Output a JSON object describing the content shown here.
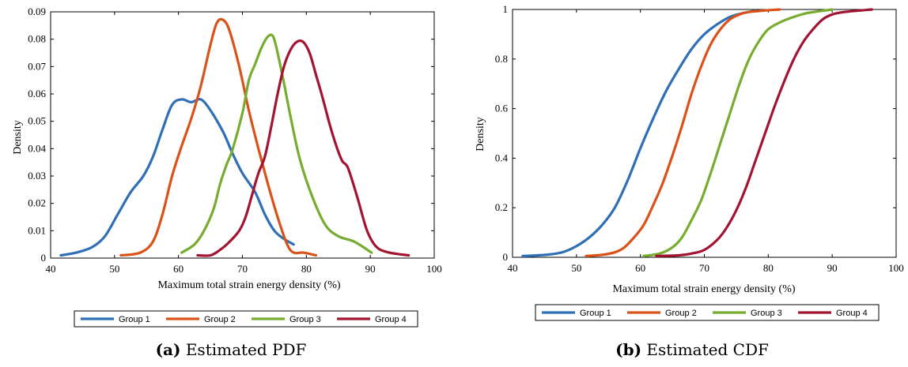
{
  "chart_data": [
    {
      "type": "line",
      "caption_label": "(a)",
      "caption_text": " Estimated PDF",
      "xlabel": "Maximum total strain energy density (%)",
      "ylabel": "Density",
      "xlim": [
        40,
        100
      ],
      "ylim": [
        0,
        0.09
      ],
      "xticks": [
        "40",
        "50",
        "60",
        "70",
        "80",
        "90",
        "100"
      ],
      "yticks": [
        "0",
        "0.01",
        "0.02",
        "0.03",
        "0.04",
        "0.05",
        "0.06",
        "0.07",
        "0.08",
        "0.09"
      ],
      "legend_position": "bottom",
      "series": [
        {
          "name": "Group 1",
          "color": "#2f6fb5",
          "x": [
            41.6,
            44,
            46.5,
            48.5,
            50.5,
            52.5,
            54.5,
            56,
            57.5,
            59,
            60.5,
            62,
            63.5,
            65,
            67,
            68.5,
            70,
            72,
            73.5,
            75,
            76.5,
            78
          ],
          "y": [
            0.001,
            0.002,
            0.004,
            0.008,
            0.016,
            0.024,
            0.03,
            0.037,
            0.047,
            0.056,
            0.058,
            0.057,
            0.058,
            0.054,
            0.046,
            0.038,
            0.031,
            0.024,
            0.016,
            0.01,
            0.007,
            0.005
          ]
        },
        {
          "name": "Group 2",
          "color": "#d95319",
          "x": [
            51,
            54,
            56,
            57.5,
            59,
            60.5,
            62,
            63.5,
            65,
            66,
            67,
            68,
            69.5,
            71,
            72.5,
            74,
            75.5,
            77,
            78,
            79.5,
            81.5
          ],
          "y": [
            0.001,
            0.002,
            0.006,
            0.016,
            0.03,
            0.041,
            0.051,
            0.063,
            0.078,
            0.086,
            0.087,
            0.083,
            0.07,
            0.054,
            0.04,
            0.027,
            0.015,
            0.005,
            0.002,
            0.002,
            0.001
          ]
        },
        {
          "name": "Group 3",
          "color": "#77ac30",
          "x": [
            60.5,
            62.5,
            64,
            65.5,
            66.5,
            67.5,
            68.5,
            70,
            71,
            72,
            73,
            74,
            74.8,
            75.5,
            76.5,
            77.5,
            79,
            81,
            83,
            85,
            87.5,
            90.2
          ],
          "y": [
            0.002,
            0.005,
            0.01,
            0.018,
            0.027,
            0.034,
            0.04,
            0.053,
            0.065,
            0.071,
            0.077,
            0.081,
            0.081,
            0.075,
            0.064,
            0.052,
            0.036,
            0.022,
            0.012,
            0.008,
            0.006,
            0.002
          ]
        },
        {
          "name": "Group 4",
          "color": "#a2142f",
          "x": [
            63,
            65,
            66.5,
            68,
            69.5,
            70.5,
            71.5,
            72.5,
            73.5,
            74.5,
            75.5,
            76.5,
            77.5,
            78.5,
            79.5,
            80.5,
            81.5,
            82.5,
            84,
            85.5,
            86.5,
            88,
            89.5,
            91,
            93,
            96
          ],
          "y": [
            0.001,
            0.001,
            0.003,
            0.006,
            0.01,
            0.015,
            0.023,
            0.031,
            0.037,
            0.048,
            0.06,
            0.07,
            0.076,
            0.079,
            0.079,
            0.075,
            0.067,
            0.059,
            0.046,
            0.036,
            0.033,
            0.022,
            0.01,
            0.004,
            0.002,
            0.001
          ]
        }
      ]
    },
    {
      "type": "line",
      "caption_label": "(b)",
      "caption_text": " Estimated CDF",
      "xlabel": "Maximum total strain energy density (%)",
      "ylabel": "Density",
      "xlim": [
        40,
        100
      ],
      "ylim": [
        0,
        1
      ],
      "xticks": [
        "40",
        "50",
        "60",
        "70",
        "80",
        "90",
        "100"
      ],
      "yticks": [
        "0",
        "0.2",
        "0.4",
        "0.6",
        "0.8",
        "1"
      ],
      "legend_position": "bottom",
      "series": [
        {
          "name": "Group 1",
          "color": "#2f6fb5",
          "x": [
            41.6,
            44,
            46,
            48,
            50,
            52,
            54,
            56,
            58,
            60,
            62,
            64,
            66,
            68,
            70,
            72,
            74,
            76,
            78
          ],
          "y": [
            0.005,
            0.008,
            0.012,
            0.022,
            0.045,
            0.08,
            0.13,
            0.2,
            0.31,
            0.44,
            0.56,
            0.67,
            0.76,
            0.84,
            0.9,
            0.94,
            0.97,
            0.985,
            0.995
          ]
        },
        {
          "name": "Group 2",
          "color": "#d95319",
          "x": [
            51.5,
            54,
            56,
            57.5,
            59,
            60.5,
            62,
            63.5,
            65,
            66.5,
            68,
            69.5,
            71,
            72.5,
            74,
            75.5,
            77,
            79,
            81.8
          ],
          "y": [
            0.005,
            0.01,
            0.02,
            0.04,
            0.08,
            0.13,
            0.21,
            0.3,
            0.41,
            0.53,
            0.66,
            0.77,
            0.86,
            0.92,
            0.96,
            0.98,
            0.99,
            0.995,
            1.0
          ]
        },
        {
          "name": "Group 3",
          "color": "#77ac30",
          "x": [
            60.5,
            63,
            65,
            66.5,
            68,
            69.5,
            71,
            72.5,
            74,
            75.5,
            77,
            78.5,
            80,
            82,
            84,
            86,
            88,
            90
          ],
          "y": [
            0.005,
            0.015,
            0.04,
            0.08,
            0.15,
            0.23,
            0.34,
            0.46,
            0.58,
            0.7,
            0.8,
            0.87,
            0.92,
            0.95,
            0.97,
            0.985,
            0.993,
            1.0
          ]
        },
        {
          "name": "Group 4",
          "color": "#a2142f",
          "x": [
            62.5,
            66,
            68,
            70,
            72,
            73.5,
            75,
            76.5,
            78,
            79.5,
            81,
            82.5,
            84,
            85.5,
            87,
            88.5,
            90,
            92,
            96.2
          ],
          "y": [
            0.005,
            0.008,
            0.015,
            0.03,
            0.07,
            0.12,
            0.19,
            0.28,
            0.39,
            0.5,
            0.61,
            0.71,
            0.8,
            0.87,
            0.92,
            0.96,
            0.98,
            0.99,
            1.0
          ]
        }
      ]
    }
  ]
}
